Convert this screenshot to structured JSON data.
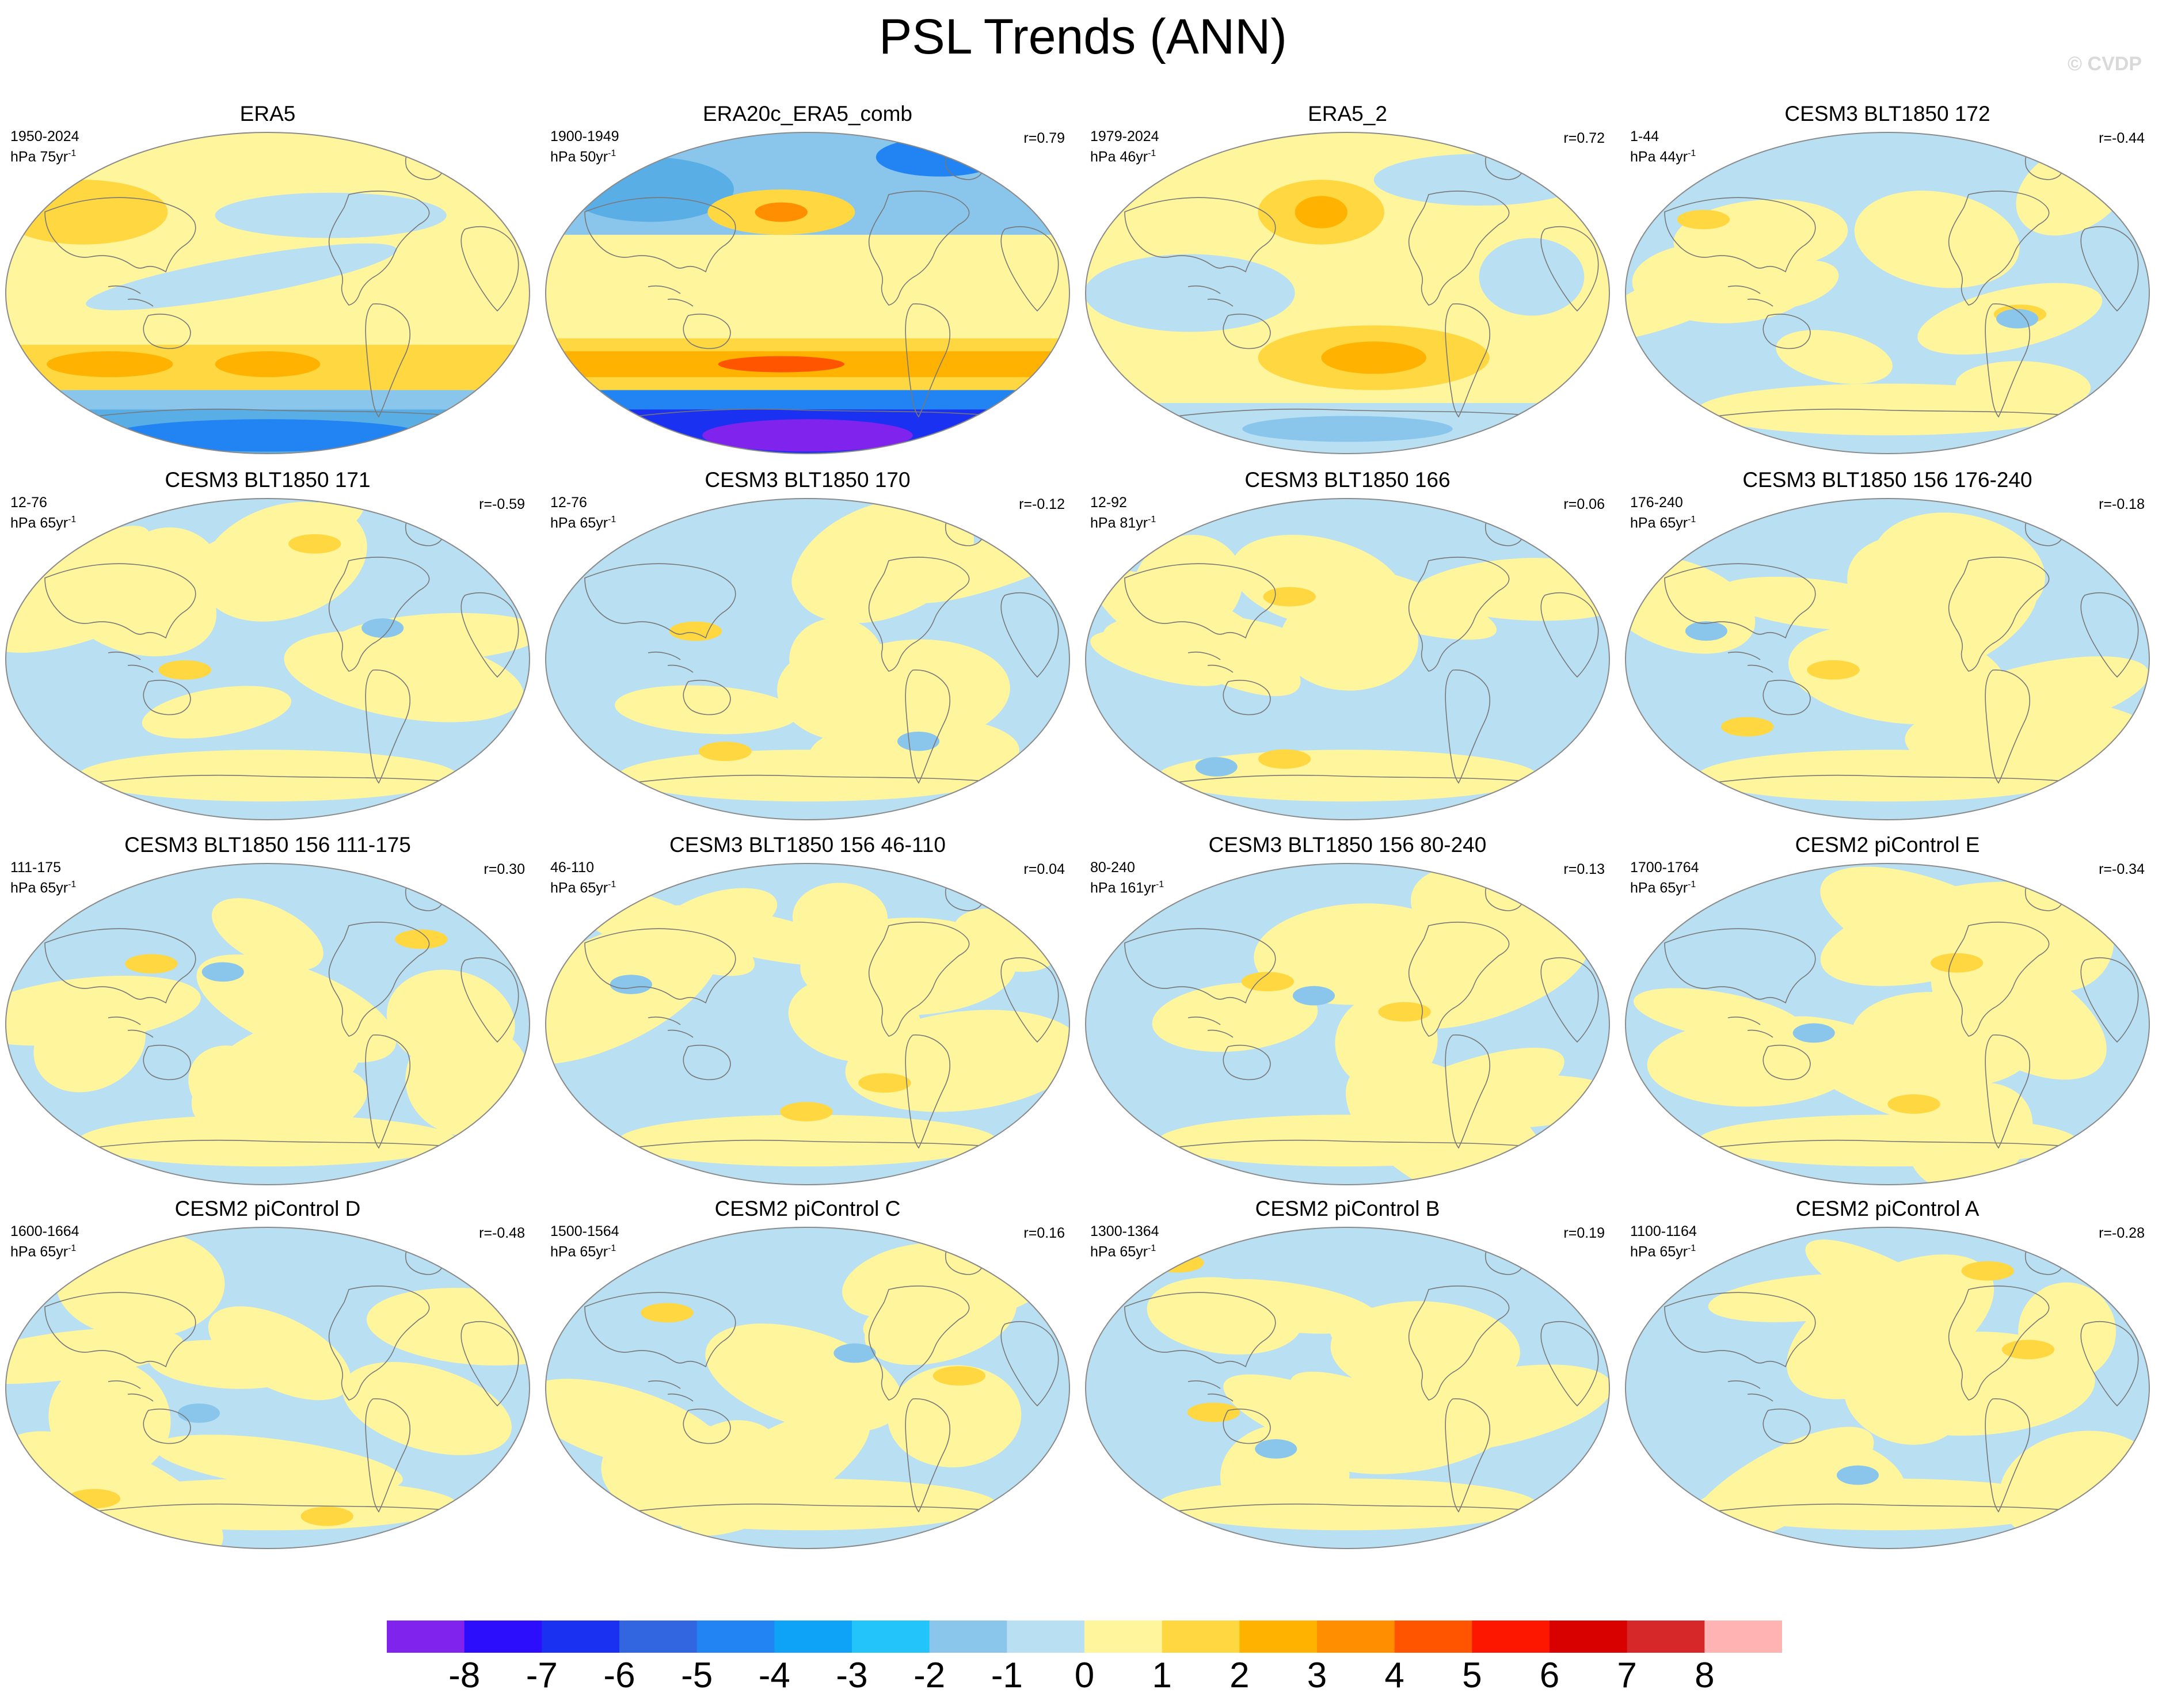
{
  "title": "PSL Trends (ANN)",
  "watermark": "© CVDP",
  "colors": {
    "pos1": "#fff59d",
    "pos2": "#ffd740",
    "pos3": "#ffb300",
    "pos4": "#ff8f00",
    "neg1": "#b9dff3",
    "neg2": "#8ac6ec",
    "neg3": "#5aaee6",
    "coast": "#777777",
    "border": "#8a8a8a"
  },
  "panels": [
    {
      "title": "ERA5",
      "period": "1950-2024",
      "units": "hPa 75yr",
      "corr": "",
      "pattern": "era5"
    },
    {
      "title": "ERA20c_ERA5_comb",
      "period": "1900-1949",
      "units": "hPa 50yr",
      "corr": "r=0.79",
      "pattern": "era20c"
    },
    {
      "title": "ERA5_2",
      "period": "1979-2024",
      "units": "hPa 46yr",
      "corr": "r=0.72",
      "pattern": "era52"
    },
    {
      "title": "CESM3 BLT1850 172",
      "period": "1-44",
      "units": "hPa 44yr",
      "corr": "r=-0.44",
      "pattern": "neutral"
    },
    {
      "title": "CESM3 BLT1850 171",
      "period": "12-76",
      "units": "hPa 65yr",
      "corr": "r=-0.59",
      "pattern": "neutral"
    },
    {
      "title": "CESM3 BLT1850 170",
      "period": "12-76",
      "units": "hPa 65yr",
      "corr": "r=-0.12",
      "pattern": "neutral"
    },
    {
      "title": "CESM3 BLT1850 166",
      "period": "12-92",
      "units": "hPa 81yr",
      "corr": "r=0.06",
      "pattern": "neutral"
    },
    {
      "title": "CESM3 BLT1850 156 176-240",
      "period": "176-240",
      "units": "hPa 65yr",
      "corr": "r=-0.18",
      "pattern": "neutral"
    },
    {
      "title": "CESM3 BLT1850 156 111-175",
      "period": "111-175",
      "units": "hPa 65yr",
      "corr": "r=0.30",
      "pattern": "neutral"
    },
    {
      "title": "CESM3 BLT1850 156 46-110",
      "period": "46-110",
      "units": "hPa 65yr",
      "corr": "r=0.04",
      "pattern": "neutral"
    },
    {
      "title": "CESM3 BLT1850 156 80-240",
      "period": "80-240",
      "units": "hPa 161yr",
      "corr": "r=0.13",
      "pattern": "neutral"
    },
    {
      "title": "CESM2 piControl E",
      "period": "1700-1764",
      "units": "hPa 65yr",
      "corr": "r=-0.34",
      "pattern": "neutral"
    },
    {
      "title": "CESM2 piControl D",
      "period": "1600-1664",
      "units": "hPa 65yr",
      "corr": "r=-0.48",
      "pattern": "neutral"
    },
    {
      "title": "CESM2 piControl C",
      "period": "1500-1564",
      "units": "hPa 65yr",
      "corr": "r=0.16",
      "pattern": "neutral"
    },
    {
      "title": "CESM2 piControl B",
      "period": "1300-1364",
      "units": "hPa 65yr",
      "corr": "r=0.19",
      "pattern": "neutral"
    },
    {
      "title": "CESM2 piControl A",
      "period": "1100-1164",
      "units": "hPa 65yr",
      "corr": "r=-0.28",
      "pattern": "neutral"
    }
  ],
  "chart_data": {
    "type": "heatmap",
    "title": "PSL Trends (ANN)",
    "variable": "PSL",
    "projection": "robinson",
    "colorbar": {
      "levels": [
        -8,
        -7,
        -6,
        -5,
        -4,
        -3,
        -2,
        -1,
        0,
        1,
        2,
        3,
        4,
        5,
        6,
        7,
        8
      ],
      "labels": [
        "-8",
        "-7",
        "-6",
        "-5",
        "-4",
        "-3",
        "-2",
        "-1",
        "0",
        "1",
        "2",
        "3",
        "4",
        "5",
        "6",
        "7",
        "8"
      ],
      "colors": [
        "#8023ec",
        "#2c0dfc",
        "#1b31f1",
        "#3266e0",
        "#2284f2",
        "#0ea3f6",
        "#22c4f9",
        "#8ac6ec",
        "#b9dff3",
        "#fff59d",
        "#ffd740",
        "#ffb300",
        "#ff8f00",
        "#ff5500",
        "#fd1700",
        "#d90000",
        "#d62828",
        "#ffb3b3"
      ]
    }
  }
}
